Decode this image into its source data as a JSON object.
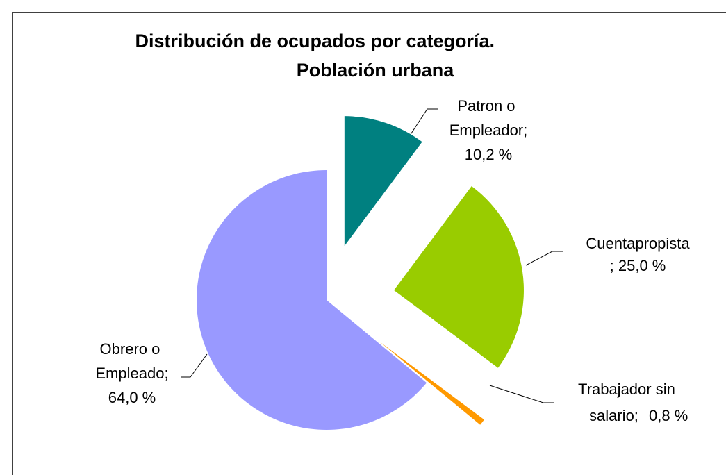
{
  "chart_data": {
    "type": "pie",
    "title": "Distribución de ocupados por categoría. Población urbana .",
    "categories": [
      "Patron o Empleador;",
      "Cuentapropista",
      "Trabajador sin salario;",
      "Obrero o Empleado;"
    ],
    "values": [
      10.2,
      25.0,
      0.8,
      64.0
    ],
    "value_labels": [
      "10,2 %",
      "; 25,0 %",
      "0,8 %",
      "64,0 %"
    ],
    "colors": [
      "#008080",
      "#99cc00",
      "#ff9900",
      "#9999ff"
    ]
  }
}
